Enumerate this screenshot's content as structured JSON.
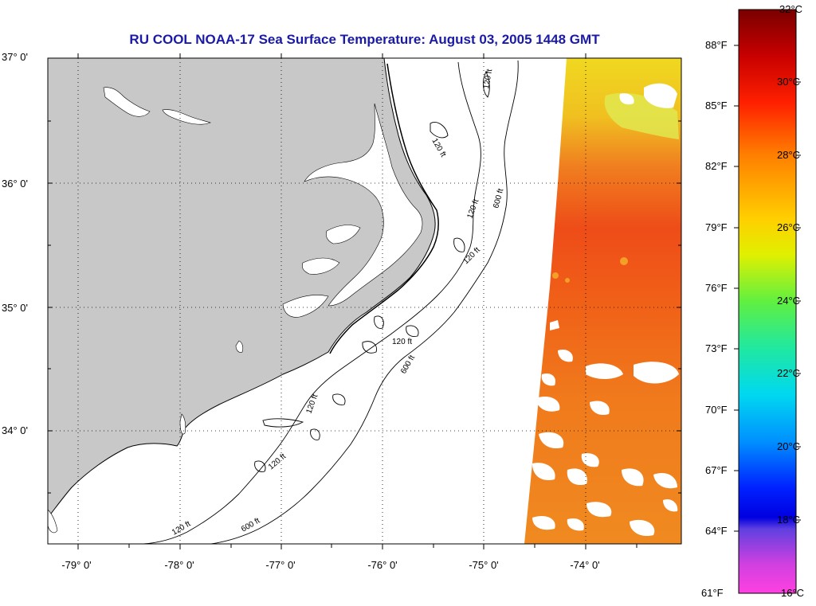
{
  "title": "RU COOL  NOAA-17  Sea Surface Temperature:  August 03, 2005 1448 GMT",
  "axes": {
    "lat_labels": [
      "37° 0'",
      "36° 0'",
      "35° 0'",
      "34° 0'"
    ],
    "lon_labels": [
      "-79° 0'",
      "-78° 0'",
      "-77° 0'",
      "-76° 0'",
      "-75° 0'",
      "-74° 0'"
    ]
  },
  "contours": {
    "label_120": "120 ft",
    "label_600": "600 ft"
  },
  "colorbar": {
    "fahrenheit": [
      "88°F",
      "85°F",
      "82°F",
      "79°F",
      "76°F",
      "73°F",
      "70°F",
      "67°F",
      "64°F",
      "61°F"
    ],
    "celsius": [
      "32°C",
      "30°C",
      "28°C",
      "26°C",
      "24°C",
      "22°C",
      "20°C",
      "18°C",
      "16°C"
    ]
  },
  "colors": {
    "title": "#1a1aa6",
    "land": "#c8c8c8",
    "sst_warm": "#f06010",
    "sst_mid": "#f5a020",
    "sst_cool": "#e8e030"
  }
}
